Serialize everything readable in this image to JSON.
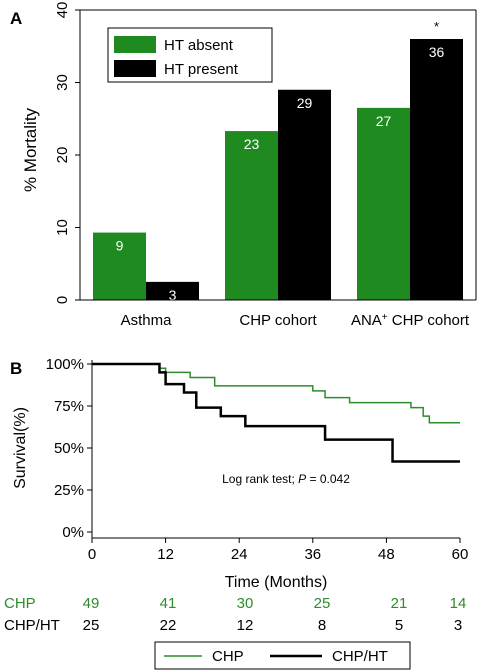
{
  "colors": {
    "absent": "#1f8a1f",
    "present": "#000000",
    "chp_line": "#2e8b2e",
    "chp_ht_line": "#000000"
  },
  "chart_data": [
    {
      "panel_label": "A",
      "type": "bar",
      "ylabel": "% Mortality",
      "ylim": [
        0,
        40
      ],
      "yticks": [
        0,
        10,
        20,
        30,
        40
      ],
      "categories": [
        {
          "prefix": "Asthma",
          "sup": "",
          "suffix": ""
        },
        {
          "prefix": "CHP cohort",
          "sup": "",
          "suffix": ""
        },
        {
          "prefix": "ANA",
          "sup": "+",
          "suffix": " CHP cohort"
        }
      ],
      "series": [
        {
          "name": "HT absent",
          "values": [
            9,
            23,
            27
          ],
          "heights": [
            9.3,
            23.3,
            26.5
          ],
          "labels": [
            "9",
            "23",
            "27"
          ]
        },
        {
          "name": "HT present",
          "values": [
            3,
            29,
            36
          ],
          "heights": [
            2.5,
            29.0,
            36.0
          ],
          "labels": [
            "3",
            "29",
            "36"
          ]
        }
      ],
      "annotations": [
        {
          "text": "*",
          "category": 2,
          "series": 1
        }
      ],
      "legend": "top-left"
    },
    {
      "panel_label": "B",
      "type": "line",
      "xlabel": "Time (Months)",
      "ylabel": "Survival(%)",
      "xlim": [
        0,
        60
      ],
      "ylim": [
        0,
        100
      ],
      "xticks": [
        0,
        12,
        24,
        36,
        48,
        60
      ],
      "yticks": [
        {
          "value": 0,
          "label": "0%"
        },
        {
          "value": 25,
          "label": "25%"
        },
        {
          "value": 50,
          "label": "50%"
        },
        {
          "value": 75,
          "label": "75%"
        },
        {
          "value": 100,
          "label": "100%"
        }
      ],
      "annotation": {
        "prefix": "Log rank test; ",
        "italic": "P",
        "suffix": " = 0.042"
      },
      "series": [
        {
          "name": "CHP",
          "steps": [
            [
              0,
              100
            ],
            [
              11,
              97.5
            ],
            [
              12,
              95
            ],
            [
              16,
              92
            ],
            [
              20,
              87
            ],
            [
              36,
              84
            ],
            [
              38,
              80
            ],
            [
              42,
              77
            ],
            [
              52,
              74
            ],
            [
              54,
              69
            ],
            [
              55,
              65
            ],
            [
              60,
              65
            ]
          ]
        },
        {
          "name": "CHP/HT",
          "steps": [
            [
              0,
              100
            ],
            [
              11,
              95
            ],
            [
              12,
              88
            ],
            [
              15,
              83
            ],
            [
              17,
              74
            ],
            [
              21,
              69
            ],
            [
              25,
              63
            ],
            [
              38,
              55
            ],
            [
              49,
              42
            ],
            [
              60,
              42
            ]
          ]
        }
      ],
      "risk_table": {
        "rows": [
          {
            "label": "CHP",
            "values": [
              "49",
              "41",
              "30",
              "25",
              "21",
              "14"
            ]
          },
          {
            "label": "CHP/HT",
            "values": [
              "25",
              "22",
              "12",
              "8",
              "5",
              "3"
            ]
          }
        ]
      },
      "legend": "bottom"
    }
  ]
}
